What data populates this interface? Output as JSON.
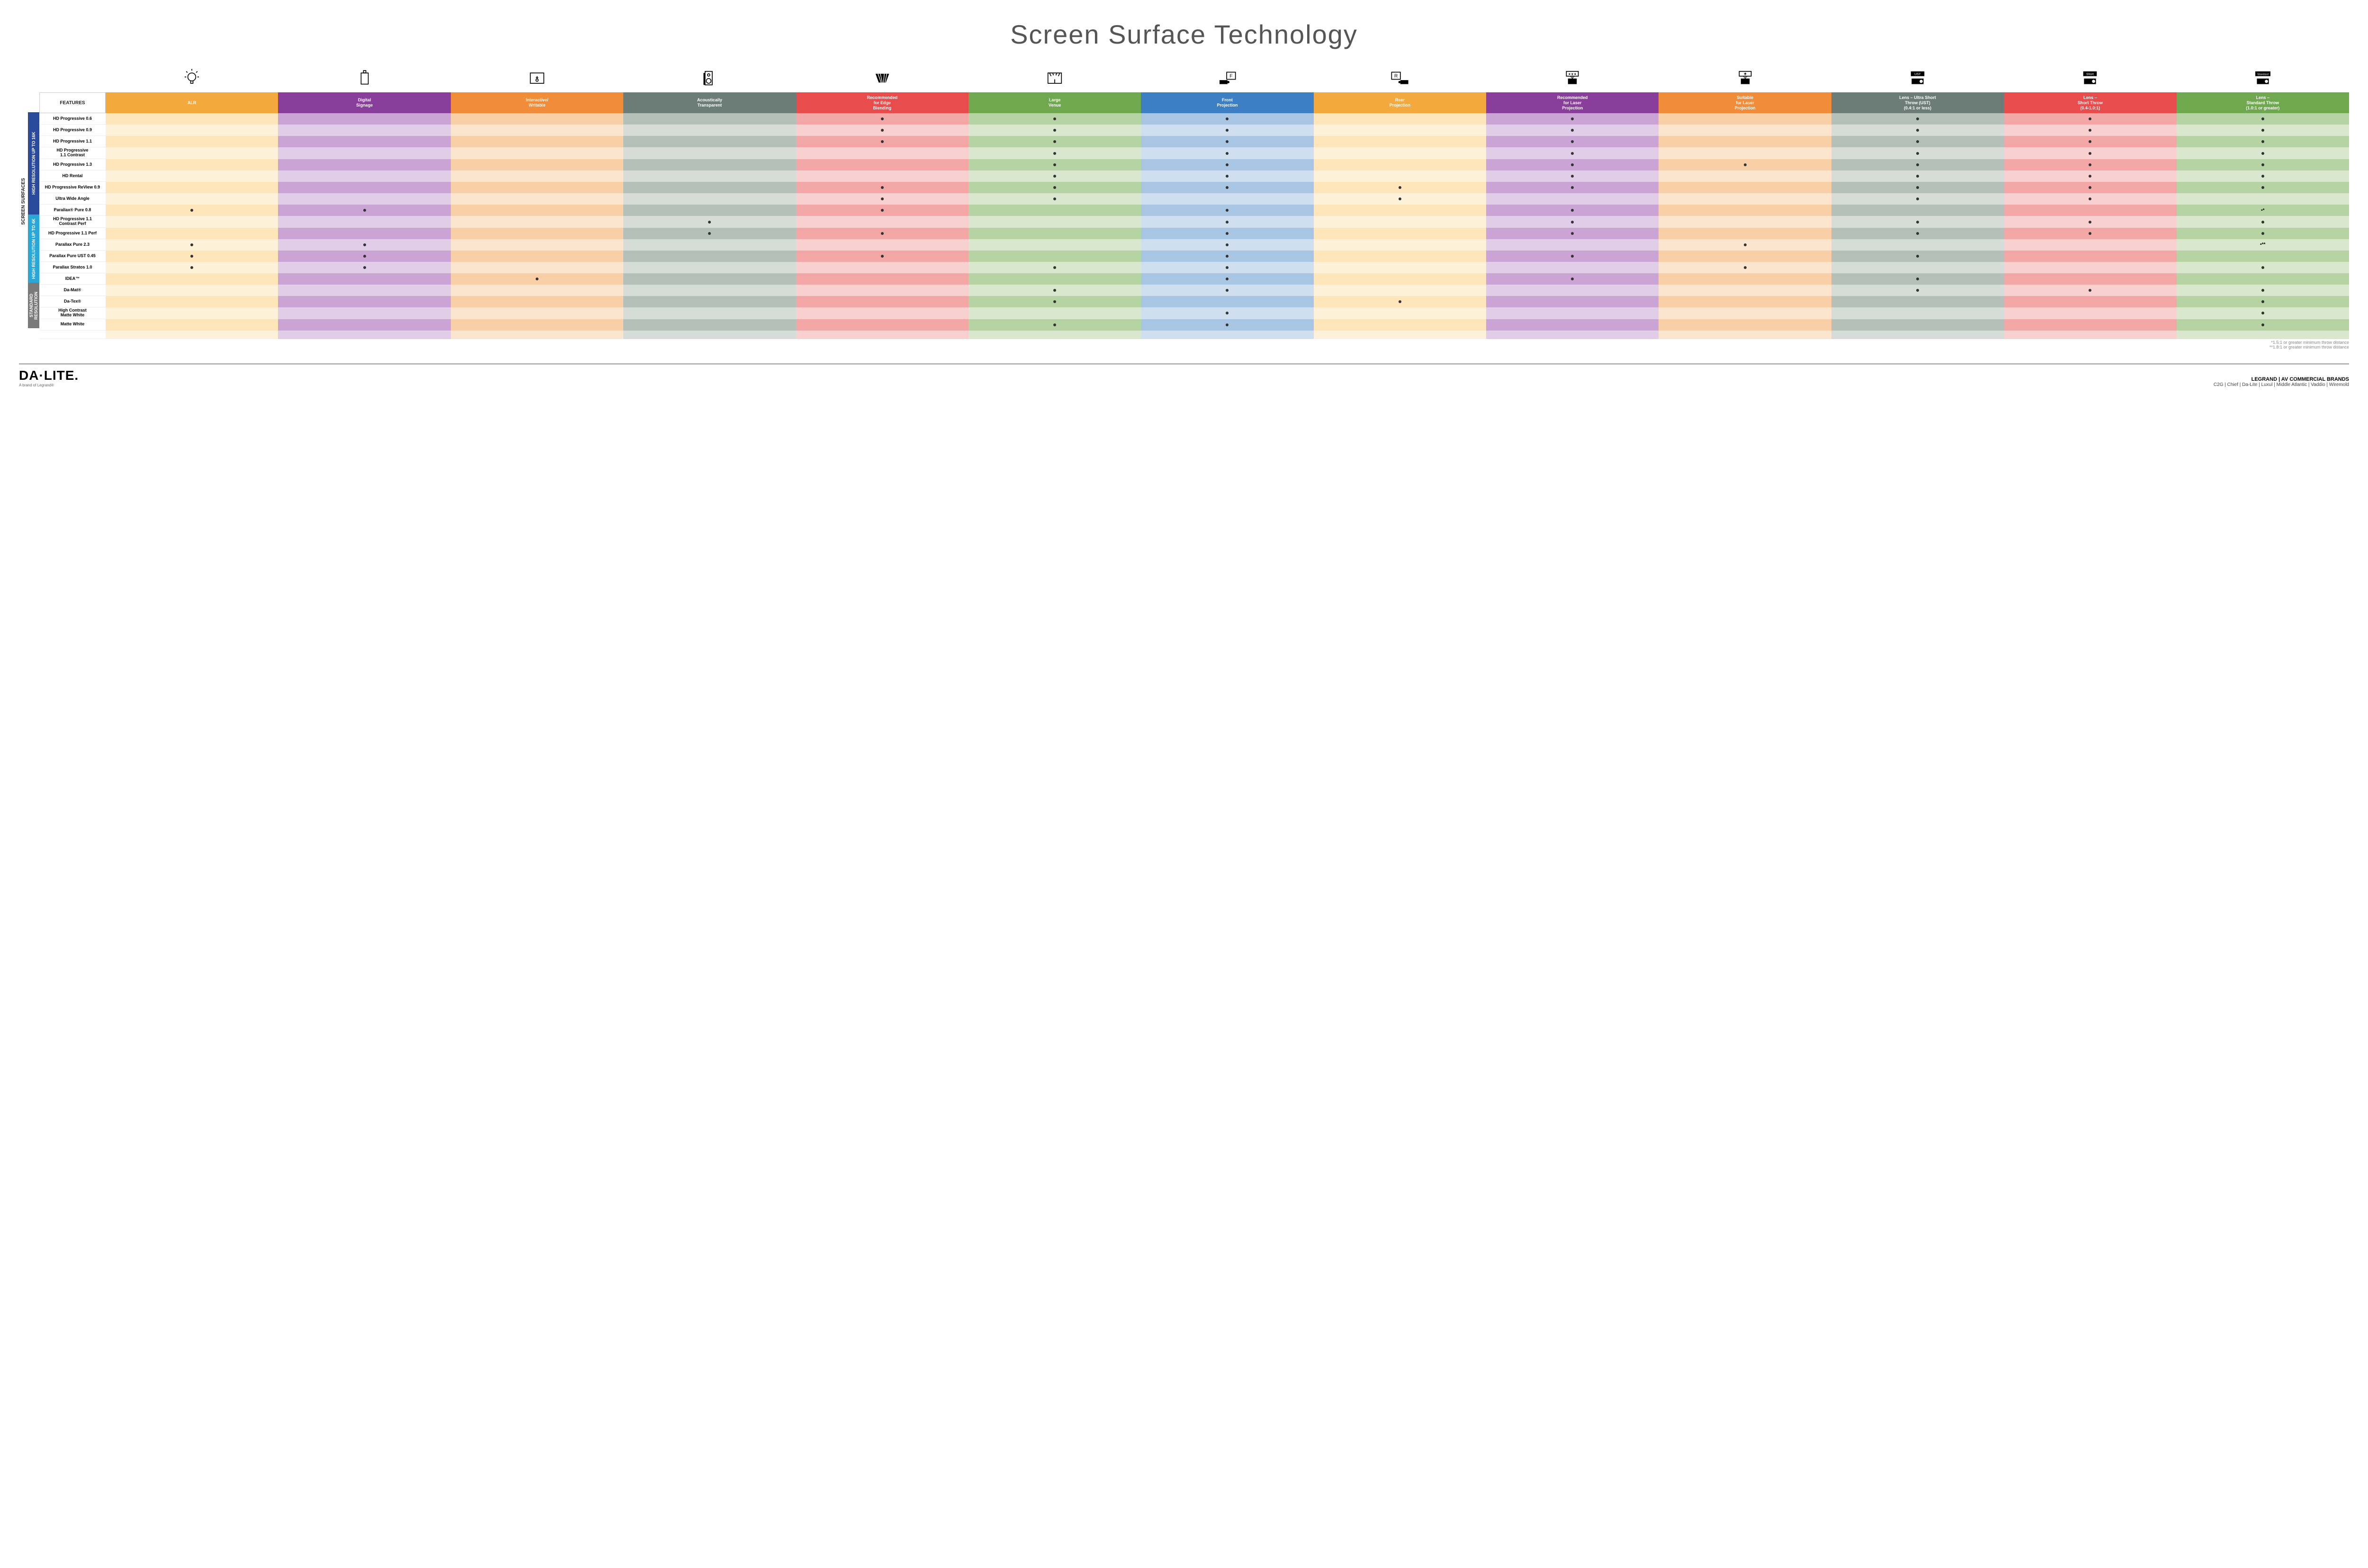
{
  "title": "Screen Surface Technology",
  "features_header": "FEATURES",
  "side_label": "SCREEN SURFACES",
  "columns": [
    {
      "label": "ALR",
      "color": "#f4a93e",
      "light": "#fde4b9",
      "lighter": "#fef1d9"
    },
    {
      "label": "Digital\nSignage",
      "color": "#8a3e9c",
      "light": "#c9a4d4",
      "lighter": "#e2cde8"
    },
    {
      "label": "Interactive/\nWritable",
      "color": "#f08c3a",
      "light": "#f9cfa8",
      "lighter": "#fce5cf"
    },
    {
      "label": "Acoustically\nTransparent",
      "color": "#6b7d76",
      "light": "#b5c0ba",
      "lighter": "#d6dcd8"
    },
    {
      "label": "Recommended\nfor Edge\nBlending",
      "color": "#e84c4c",
      "light": "#f3a6a6",
      "lighter": "#f9d0d0"
    },
    {
      "label": "Large\nVenue",
      "color": "#6fa84f",
      "light": "#b6d3a3",
      "lighter": "#d8e7cd"
    },
    {
      "label": "Front\nProjection",
      "color": "#3d7fc4",
      "light": "#a8c5e3",
      "lighter": "#d0dff0"
    },
    {
      "label": "Rear\nProjection",
      "color": "#f4a93e",
      "light": "#fde4b9",
      "lighter": "#fef1d9"
    },
    {
      "label": "Recommended\nfor Laser\nProjection",
      "color": "#8a3e9c",
      "light": "#c9a4d4",
      "lighter": "#e2cde8"
    },
    {
      "label": "Suitable\nfor Laser\nProjection",
      "color": "#f08c3a",
      "light": "#f9cfa8",
      "lighter": "#fce5cf"
    },
    {
      "label": "Lens – Ultra Short\nThrow (UST)\n(0.4:1 or less)",
      "color": "#6b7d76",
      "light": "#b5c0ba",
      "lighter": "#d6dcd8"
    },
    {
      "label": "Lens –\nShort Throw\n(0.4-1.0:1)",
      "color": "#e84c4c",
      "light": "#f3a6a6",
      "lighter": "#f9d0d0"
    },
    {
      "label": "Lens –\nStandard Throw\n(1.0:1 or greater)",
      "color": "#6fa84f",
      "light": "#b6d3a3",
      "lighter": "#d8e7cd"
    }
  ],
  "groups": [
    {
      "label": "HIGH RESOLUTION UP TO 16K",
      "color": "#2b4a9c",
      "rows": [
        {
          "label": "HD Progressive 0.6",
          "dots": [
            0,
            0,
            0,
            0,
            1,
            1,
            1,
            0,
            1,
            0,
            1,
            1,
            1
          ]
        },
        {
          "label": "HD Progressive 0.9",
          "dots": [
            0,
            0,
            0,
            0,
            1,
            1,
            1,
            0,
            1,
            0,
            1,
            1,
            1
          ]
        },
        {
          "label": "HD Progressive 1.1",
          "dots": [
            0,
            0,
            0,
            0,
            1,
            1,
            1,
            0,
            1,
            0,
            1,
            1,
            1
          ]
        },
        {
          "label": "HD Progressive\n1.1 Contrast",
          "dots": [
            0,
            0,
            0,
            0,
            0,
            1,
            1,
            0,
            1,
            0,
            1,
            1,
            1
          ]
        },
        {
          "label": "HD Progressive 1.3",
          "dots": [
            0,
            0,
            0,
            0,
            0,
            1,
            1,
            0,
            1,
            1,
            1,
            1,
            1
          ]
        },
        {
          "label": "HD Rental",
          "dots": [
            0,
            0,
            0,
            0,
            0,
            1,
            1,
            0,
            1,
            0,
            1,
            1,
            1
          ]
        },
        {
          "label": "HD Progressive ReView 0.9",
          "dots": [
            0,
            0,
            0,
            0,
            1,
            1,
            1,
            1,
            1,
            0,
            1,
            1,
            1
          ]
        },
        {
          "label": "Ultra Wide Angle",
          "dots": [
            0,
            0,
            0,
            0,
            1,
            1,
            0,
            1,
            0,
            0,
            1,
            1,
            0
          ]
        },
        {
          "label": "Parallax® Pure 0.8",
          "dots": [
            1,
            1,
            0,
            0,
            1,
            0,
            1,
            0,
            1,
            0,
            0,
            0,
            "•*"
          ]
        }
      ]
    },
    {
      "label": "HIGH RESOLUTION UP TO 4K",
      "color": "#2aa7d6",
      "rows": [
        {
          "label": "HD Progressive 1.1\nContrast Perf",
          "dots": [
            0,
            0,
            0,
            1,
            0,
            0,
            1,
            0,
            1,
            0,
            1,
            1,
            1
          ]
        },
        {
          "label": "HD Progressive 1.1 Perf",
          "dots": [
            0,
            0,
            0,
            1,
            1,
            0,
            1,
            0,
            1,
            0,
            1,
            1,
            1
          ]
        },
        {
          "label": "Parallax Pure 2.3",
          "dots": [
            1,
            1,
            0,
            0,
            0,
            0,
            1,
            0,
            0,
            1,
            0,
            0,
            "•**"
          ]
        },
        {
          "label": "Parallax Pure UST 0.45",
          "dots": [
            1,
            1,
            0,
            0,
            1,
            0,
            1,
            0,
            1,
            0,
            1,
            0,
            0
          ]
        },
        {
          "label": "Parallax Stratos 1.0",
          "dots": [
            1,
            1,
            0,
            0,
            0,
            1,
            1,
            0,
            0,
            1,
            0,
            0,
            1
          ]
        },
        {
          "label": "IDEA™",
          "dots": [
            0,
            0,
            1,
            0,
            0,
            0,
            1,
            0,
            1,
            0,
            1,
            0,
            0
          ]
        }
      ]
    },
    {
      "label": "STANDARD\nRESOLUTION",
      "color": "#7a7a7a",
      "rows": [
        {
          "label": "Da-Mat®",
          "dots": [
            0,
            0,
            0,
            0,
            0,
            1,
            1,
            0,
            0,
            0,
            1,
            1,
            1
          ]
        },
        {
          "label": "Da-Tex®",
          "dots": [
            0,
            0,
            0,
            0,
            0,
            1,
            0,
            1,
            0,
            0,
            0,
            0,
            1
          ]
        },
        {
          "label": "High Contrast\nMatte White",
          "dots": [
            0,
            0,
            0,
            0,
            0,
            0,
            1,
            0,
            0,
            0,
            0,
            0,
            1
          ]
        },
        {
          "label": "Matte White",
          "dots": [
            0,
            0,
            0,
            0,
            0,
            1,
            1,
            0,
            0,
            0,
            0,
            0,
            1
          ]
        }
      ]
    }
  ],
  "footnotes": [
    "*1.5:1 or greater minimum throw distance",
    "**1.8:1 or greater minimum throw distance"
  ],
  "logo": "DA·LITE.",
  "logo_sub": "A brand of Legrand®",
  "brands_header": "LEGRAND | AV COMMERCIAL BRANDS",
  "brands": "C2G  |  Chief  |  Da-Lite  |  Luxul  |  Middle Atlantic  |  Vaddio  |  Wiremold",
  "icons": [
    "bulb",
    "signage",
    "touch",
    "speaker",
    "venue",
    "stage",
    "front",
    "rear",
    "laser-rec",
    "laser-suit",
    "ust",
    "short",
    "standard"
  ]
}
